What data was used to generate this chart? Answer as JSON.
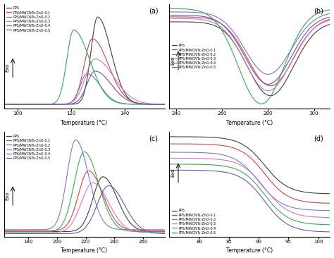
{
  "legend_labels": [
    "PPS",
    "PPS/MWCNTs-ZnO-0.1",
    "PPS/MWCNTs-ZnO-0.2",
    "PPS/MWCNTs-ZnO-0.3",
    "PPS/MWCNTs-ZnO-0.4",
    "PPS/MWCNTs-ZnO-0.5"
  ],
  "colors": [
    "#404040",
    "#d44040",
    "#7878cc",
    "#c878c8",
    "#38a858",
    "#6858a8"
  ],
  "subplot_labels": [
    "(a)",
    "(b)",
    "(c)",
    "(d)"
  ],
  "panel_a": {
    "xlabel": "Temperature (°C)",
    "xlim": [
      95,
      155
    ],
    "xticks": [
      100,
      120,
      140
    ],
    "peak_centers": [
      130,
      128,
      126,
      129,
      121,
      129
    ],
    "peak_heights": [
      1.0,
      0.75,
      0.35,
      0.52,
      0.85,
      0.38
    ],
    "peak_widths_l": [
      2.5,
      3.0,
      2.5,
      3.5,
      2.5,
      3.0
    ],
    "peak_widths_r": [
      5.0,
      6.0,
      5.0,
      7.0,
      6.0,
      6.0
    ],
    "baselines": [
      0.0,
      0.0,
      0.0,
      0.0,
      0.0,
      0.0
    ]
  },
  "panel_b": {
    "xlabel": "Temperature (°C)",
    "xlim": [
      237,
      307
    ],
    "xticks": [
      240,
      260,
      280,
      300
    ],
    "trough_centers": [
      281,
      281,
      280,
      280,
      277,
      280
    ],
    "trough_depths": [
      0.45,
      0.42,
      0.38,
      0.44,
      0.58,
      0.42
    ],
    "trough_widths": [
      10,
      10,
      10,
      10,
      10,
      10
    ],
    "baselines": [
      0.0,
      0.03,
      0.06,
      0.02,
      0.08,
      0.04
    ]
  },
  "panel_c": {
    "xlabel": "Temperature (°C)",
    "xlim": [
      163,
      275
    ],
    "xticks": [
      180,
      200,
      220,
      240,
      260
    ],
    "peak_centers": [
      232,
      222,
      213,
      225,
      219,
      236
    ],
    "peak_heights": [
      0.55,
      0.6,
      0.9,
      0.5,
      0.8,
      0.48
    ],
    "peak_widths_l": [
      7,
      7,
      6,
      8,
      7,
      8
    ],
    "peak_widths_r": [
      10,
      10,
      9,
      11,
      10,
      11
    ],
    "baselines": [
      0.0,
      0.01,
      0.02,
      -0.01,
      0.0,
      -0.02
    ]
  },
  "panel_d": {
    "xlabel": "Temperature (°C)",
    "xlim": [
      75,
      102
    ],
    "xticks": [
      80,
      85,
      90,
      95,
      100
    ],
    "step_centers": [
      91,
      91,
      90,
      91,
      91,
      91
    ],
    "step_steepness": [
      2.0,
      2.0,
      2.0,
      2.0,
      2.0,
      2.0
    ],
    "y_high": [
      0.78,
      0.72,
      0.65,
      0.6,
      0.55,
      0.5
    ],
    "y_low": [
      0.3,
      0.22,
      0.16,
      0.1,
      0.04,
      -0.02
    ]
  }
}
